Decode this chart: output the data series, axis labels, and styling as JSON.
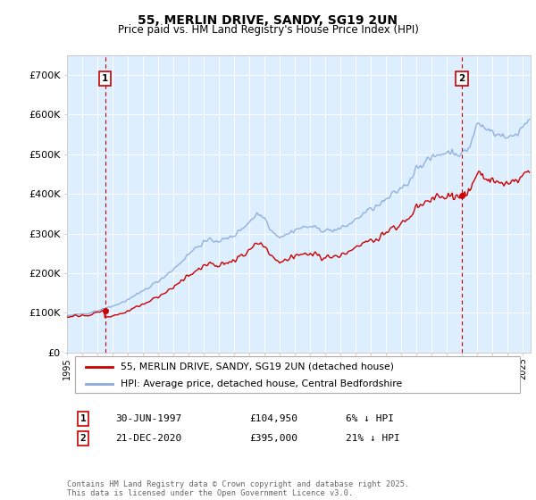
{
  "title": "55, MERLIN DRIVE, SANDY, SG19 2UN",
  "subtitle": "Price paid vs. HM Land Registry's House Price Index (HPI)",
  "legend_line1": "55, MERLIN DRIVE, SANDY, SG19 2UN (detached house)",
  "legend_line2": "HPI: Average price, detached house, Central Bedfordshire",
  "annotation1_date": "30-JUN-1997",
  "annotation1_price": "£104,950",
  "annotation1_hpi": "6% ↓ HPI",
  "annotation2_date": "21-DEC-2020",
  "annotation2_price": "£395,000",
  "annotation2_hpi": "21% ↓ HPI",
  "footer": "Contains HM Land Registry data © Crown copyright and database right 2025.\nThis data is licensed under the Open Government Licence v3.0.",
  "red_color": "#cc0000",
  "blue_color": "#88aadd",
  "plot_bg_color": "#ddeeff",
  "ylim": [
    0,
    750000
  ],
  "yticks": [
    0,
    100000,
    200000,
    300000,
    400000,
    500000,
    600000,
    700000
  ],
  "ytick_labels": [
    "£0",
    "£100K",
    "£200K",
    "£300K",
    "£400K",
    "£500K",
    "£600K",
    "£700K"
  ],
  "sale1_year": 1997.5,
  "sale2_year": 2020.97,
  "sale1_price": 104950,
  "sale2_price": 395000,
  "xmin": 1995.0,
  "xmax": 2025.5
}
